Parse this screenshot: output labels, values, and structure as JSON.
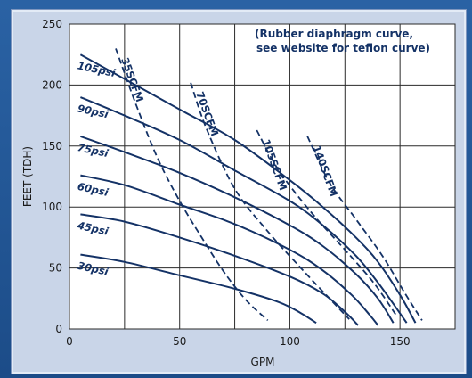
{
  "chart_data": {
    "type": "line",
    "title": "",
    "xlabel": "GPM",
    "ylabel": "FEET (TDH)",
    "xlim": [
      0,
      175
    ],
    "ylim": [
      0,
      250
    ],
    "x_ticks": [
      "0",
      "50",
      "100",
      "150"
    ],
    "y_ticks": [
      "0",
      "50",
      "100",
      "150",
      "200",
      "250"
    ],
    "grid": true,
    "note_lines": [
      "(Rubber diaphragm curve,",
      "see website for teflon curve)"
    ],
    "pressure_curves": [
      {
        "name": "105psi",
        "points": [
          [
            5,
            225
          ],
          [
            25,
            205
          ],
          [
            50,
            180
          ],
          [
            75,
            155
          ],
          [
            100,
            122
          ],
          [
            115,
            100
          ],
          [
            130,
            75
          ],
          [
            140,
            55
          ],
          [
            150,
            28
          ],
          [
            157,
            5
          ]
        ]
      },
      {
        "name": "90psi",
        "points": [
          [
            5,
            190
          ],
          [
            25,
            175
          ],
          [
            50,
            155
          ],
          [
            75,
            130
          ],
          [
            100,
            105
          ],
          [
            115,
            85
          ],
          [
            130,
            60
          ],
          [
            140,
            38
          ],
          [
            148,
            18
          ],
          [
            153,
            5
          ]
        ]
      },
      {
        "name": "75psi",
        "points": [
          [
            5,
            158
          ],
          [
            25,
            145
          ],
          [
            50,
            128
          ],
          [
            75,
            108
          ],
          [
            100,
            85
          ],
          [
            115,
            68
          ],
          [
            130,
            45
          ],
          [
            140,
            25
          ],
          [
            147,
            5
          ]
        ]
      },
      {
        "name": "60psi",
        "points": [
          [
            5,
            126
          ],
          [
            25,
            118
          ],
          [
            50,
            102
          ],
          [
            75,
            86
          ],
          [
            100,
            65
          ],
          [
            115,
            48
          ],
          [
            128,
            28
          ],
          [
            136,
            12
          ],
          [
            140,
            3
          ]
        ]
      },
      {
        "name": "45psi",
        "points": [
          [
            5,
            94
          ],
          [
            25,
            88
          ],
          [
            50,
            75
          ],
          [
            75,
            60
          ],
          [
            100,
            43
          ],
          [
            115,
            29
          ],
          [
            125,
            14
          ],
          [
            131,
            3
          ]
        ]
      },
      {
        "name": "30psi",
        "points": [
          [
            5,
            61
          ],
          [
            25,
            55
          ],
          [
            50,
            44
          ],
          [
            75,
            33
          ],
          [
            95,
            22
          ],
          [
            105,
            13
          ],
          [
            112,
            5
          ]
        ]
      }
    ],
    "air_curves": [
      {
        "name": "35SCFM",
        "points": [
          [
            21,
            230
          ],
          [
            30,
            185
          ],
          [
            40,
            140
          ],
          [
            50,
            105
          ],
          [
            60,
            75
          ],
          [
            70,
            47
          ],
          [
            80,
            24
          ],
          [
            90,
            7
          ]
        ]
      },
      {
        "name": "70SCFM",
        "points": [
          [
            55,
            202
          ],
          [
            62,
            165
          ],
          [
            75,
            115
          ],
          [
            90,
            80
          ],
          [
            105,
            50
          ],
          [
            118,
            25
          ],
          [
            127,
            8
          ]
        ]
      },
      {
        "name": "105SCFM",
        "points": [
          [
            85,
            163
          ],
          [
            95,
            130
          ],
          [
            110,
            95
          ],
          [
            125,
            65
          ],
          [
            138,
            38
          ],
          [
            148,
            12
          ]
        ]
      },
      {
        "name": "140SCFM",
        "points": [
          [
            108,
            158
          ],
          [
            118,
            120
          ],
          [
            130,
            90
          ],
          [
            142,
            60
          ],
          [
            152,
            30
          ],
          [
            160,
            7
          ]
        ]
      }
    ]
  }
}
